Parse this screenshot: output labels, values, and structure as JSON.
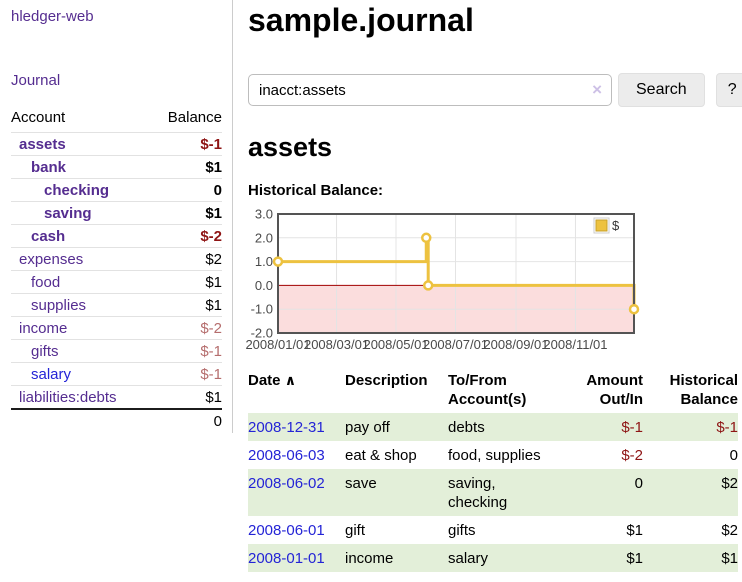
{
  "app": {
    "brand": "hledger-web",
    "nav": {
      "journal": "Journal"
    }
  },
  "sidebar": {
    "header": {
      "account": "Account",
      "balance": "Balance"
    },
    "accounts": [
      {
        "name": "assets",
        "balance": "$-1"
      },
      {
        "name": "bank",
        "balance": "$1"
      },
      {
        "name": "checking",
        "balance": "0"
      },
      {
        "name": "saving",
        "balance": "$1"
      },
      {
        "name": "cash",
        "balance": "$-2"
      },
      {
        "name": "expenses",
        "balance": "$2"
      },
      {
        "name": "food",
        "balance": "$1"
      },
      {
        "name": "supplies",
        "balance": "$1"
      },
      {
        "name": "income",
        "balance": "$-2"
      },
      {
        "name": "gifts",
        "balance": "$-1"
      },
      {
        "name": "salary",
        "balance": "$-1"
      },
      {
        "name": "liabilities:debts",
        "balance": "$1"
      }
    ],
    "total": "0"
  },
  "main": {
    "title": "sample.journal",
    "search": {
      "value": "inacct:assets",
      "clear_icon": "×",
      "search_label": "Search",
      "help_label": "?"
    },
    "account_title": "assets",
    "chart_heading": "Historical Balance:"
  },
  "register": {
    "headers": {
      "date": "Date",
      "description": "Description",
      "tofrom": "To/From Account(s)",
      "amount": "Amount Out/In",
      "balance": "Historical Balance"
    },
    "sort_asc_icon": "∧",
    "rows": [
      {
        "date": "2008-12-31",
        "description": "pay off",
        "accounts": "debts",
        "amount": "$-1",
        "balance": "$-1"
      },
      {
        "date": "2008-06-03",
        "description": "eat & shop",
        "accounts": "food, supplies",
        "amount": "$-2",
        "balance": "0"
      },
      {
        "date": "2008-06-02",
        "description": "save",
        "accounts": "saving, checking",
        "amount": "0",
        "balance": "$2"
      },
      {
        "date": "2008-06-01",
        "description": "gift",
        "accounts": "gifts",
        "amount": "$1",
        "balance": "$2"
      },
      {
        "date": "2008-01-01",
        "description": "income",
        "accounts": "salary",
        "amount": "$1",
        "balance": "$1"
      }
    ]
  },
  "chart_data": {
    "type": "line",
    "step": true,
    "title": "Historical Balance",
    "series": [
      {
        "name": "$",
        "color": "#EDC240",
        "points": [
          [
            "2008-01-01",
            1
          ],
          [
            "2008-06-01",
            2
          ],
          [
            "2008-06-03",
            0
          ],
          [
            "2008-12-31",
            -1
          ]
        ]
      }
    ],
    "xrange": [
      "2008-01-01",
      "2008-12-31"
    ],
    "ylim": [
      -2,
      3
    ],
    "yticks": [
      3,
      2,
      1,
      0,
      -1,
      -2
    ],
    "ytick_labels": [
      "3.0",
      "2.0",
      "1.0",
      "0.0",
      "-1.0",
      "-2.0"
    ],
    "xtick_labels": [
      "2008/01/01",
      "2008/03/01",
      "2008/05/01",
      "2008/07/01",
      "2008/09/01",
      "2008/11/01"
    ],
    "grid": true,
    "legend_position": "top-right",
    "colors": {
      "negative_region": "#fbdddd",
      "zero_line": "#a00000",
      "grid": "#e4e4e4",
      "border": "#545454",
      "axis_text": "#4a4a4a"
    }
  }
}
